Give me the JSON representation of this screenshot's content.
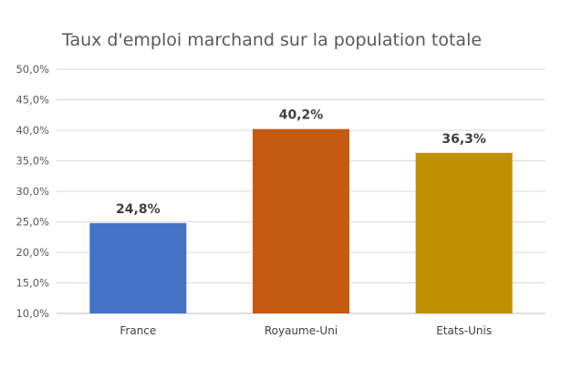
{
  "chart_data": {
    "type": "bar",
    "title": "Taux d'emploi marchand sur la population totale",
    "xlabel": "",
    "ylabel": "",
    "categories": [
      "France",
      "Royaume-Uni",
      "Etats-Unis"
    ],
    "values": [
      24.8,
      40.2,
      36.3
    ],
    "data_labels": [
      "24,8%",
      "40,2%",
      "36,3%"
    ],
    "colors": [
      "#4472C4",
      "#C55A11",
      "#BF9000"
    ],
    "ylim": [
      10,
      50
    ],
    "yticks": [
      10,
      15,
      20,
      25,
      30,
      35,
      40,
      45,
      50
    ],
    "ytick_labels": [
      "10,0%",
      "15,0%",
      "20,0%",
      "25,0%",
      "30,0%",
      "35,0%",
      "40,0%",
      "45,0%",
      "50,0%"
    ],
    "grid": true,
    "legend": "none"
  }
}
